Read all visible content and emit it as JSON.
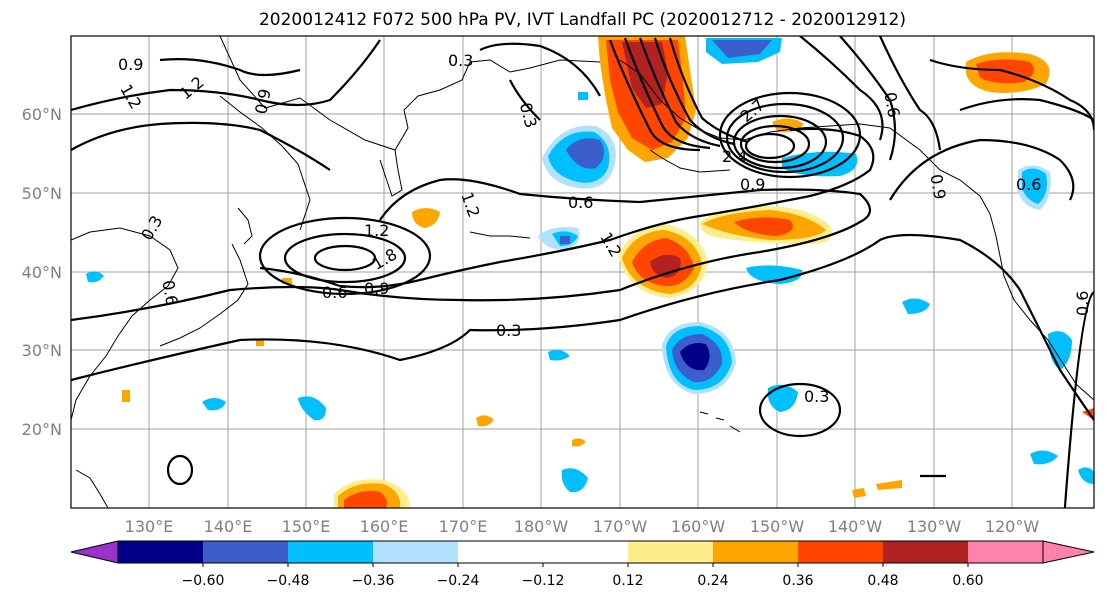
{
  "title": "2020012412 F072 500 hPa PV, IVT Landfall PC (2020012712 - 2020012912)",
  "map": {
    "lat_labels": [
      "60°N",
      "50°N",
      "40°N",
      "30°N",
      "20°N"
    ],
    "lon_labels": [
      "130°E",
      "140°E",
      "150°E",
      "160°E",
      "170°E",
      "180°W",
      "170°W",
      "160°W",
      "150°W",
      "140°W",
      "130°W",
      "120°W"
    ],
    "contour_labels": [
      "0.9",
      "1.2",
      "0.3",
      "0.9",
      "1.2",
      "0.3",
      "2.7",
      "0.6",
      "2.4",
      "0.9",
      "0.6",
      "1.2",
      "1.2",
      "0.3",
      "0.6",
      "1.2",
      "1.8",
      "0.6",
      "0.9",
      "0.3",
      "0.3",
      "0.6",
      "0.9",
      "0.6"
    ]
  },
  "colorbar": {
    "colors": [
      "#9932cc",
      "#00008b",
      "#3a5fcd",
      "#00bfff",
      "#b0e2ff",
      "#ffffff",
      "#ffec8b",
      "#ffa500",
      "#ff4500",
      "#b22222",
      "#ff82ab"
    ],
    "tick_labels": [
      "−0.60",
      "−0.48",
      "−0.36",
      "−0.24",
      "−0.12",
      "0.12",
      "0.24",
      "0.36",
      "0.48",
      "0.60"
    ]
  },
  "legend_colors": {
    "neg3": "#3a5fcd",
    "neg2": "#00bfff",
    "neg1": "#b0e2ff",
    "pos1": "#ffec8b",
    "pos2": "#ffa500",
    "pos3": "#ff4500",
    "pos4": "#b22222",
    "neg4": "#00008b"
  }
}
